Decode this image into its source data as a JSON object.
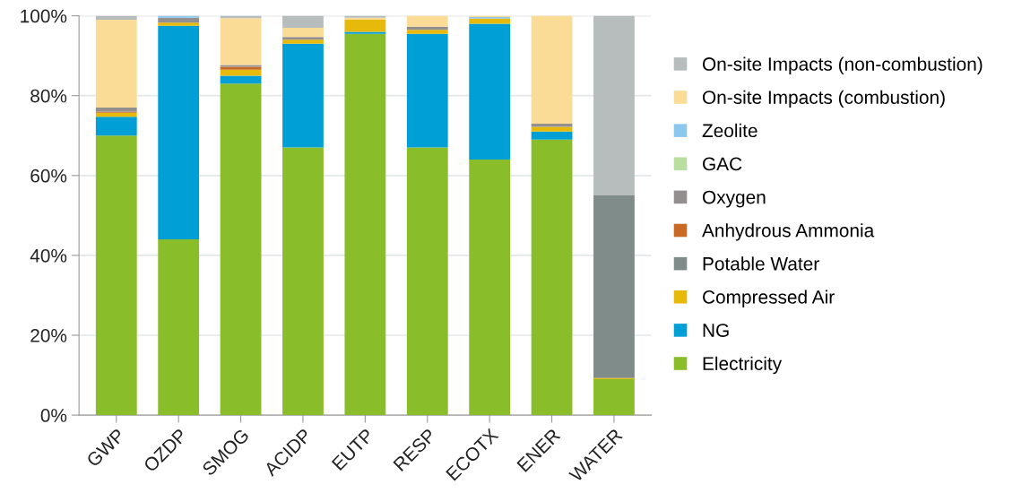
{
  "chart_data": {
    "type": "bar",
    "stacked": true,
    "categories": [
      "GWP",
      "OZDP",
      "SMOG",
      "ACIDP",
      "EUTP",
      "RESP",
      "ECOTX",
      "ENER",
      "WATER"
    ],
    "series": [
      {
        "name": "Electricity",
        "color": "#8abd2a",
        "values": [
          70,
          44,
          83,
          67,
          95.5,
          67,
          64,
          69,
          9
        ]
      },
      {
        "name": "NG",
        "color": "#00a0d6",
        "values": [
          4.7,
          53.5,
          2,
          26,
          0.5,
          28.5,
          34,
          2,
          0
        ]
      },
      {
        "name": "Compressed Air",
        "color": "#e6b90a",
        "values": [
          1,
          0.8,
          1.5,
          1,
          3,
          1,
          1.3,
          1.2,
          0.3
        ]
      },
      {
        "name": "Potable Water",
        "color": "#7f8c8a",
        "values": [
          0,
          0,
          0,
          0,
          0,
          0,
          0,
          0,
          45.7
        ]
      },
      {
        "name": "Anhydrous Ammonia",
        "color": "#c96a24",
        "values": [
          0.3,
          0,
          0.7,
          0,
          0,
          0,
          0,
          0,
          0
        ]
      },
      {
        "name": "Oxygen",
        "color": "#948f8f",
        "values": [
          1,
          1.2,
          0.5,
          0.7,
          0,
          0.8,
          0,
          0.8,
          0
        ]
      },
      {
        "name": "GAC",
        "color": "#b8dea0",
        "values": [
          0,
          0,
          0,
          0,
          0,
          0,
          0,
          0,
          0
        ]
      },
      {
        "name": "Zeolite",
        "color": "#8cc8ee",
        "values": [
          0,
          0.5,
          0,
          0,
          0,
          0,
          0.4,
          0,
          0
        ]
      },
      {
        "name": "On-site Impacts (combustion)",
        "color": "#fadc96",
        "values": [
          22,
          0,
          11.7,
          2.3,
          0.5,
          2.7,
          0.3,
          27,
          0
        ]
      },
      {
        "name": "On-site Impacts (non-combustion)",
        "color": "#b7bcbc",
        "values": [
          1,
          0,
          0.6,
          3,
          0.5,
          0,
          0,
          0,
          45
        ]
      }
    ],
    "ylim": [
      0,
      100
    ],
    "yticks": [
      {
        "value": 0,
        "label": "0%"
      },
      {
        "value": 20,
        "label": "20%"
      },
      {
        "value": 40,
        "label": "40%"
      },
      {
        "value": 60,
        "label": "60%"
      },
      {
        "value": 80,
        "label": "80%"
      },
      {
        "value": 100,
        "label": "100%"
      }
    ],
    "grid": "y",
    "legend": "right"
  }
}
